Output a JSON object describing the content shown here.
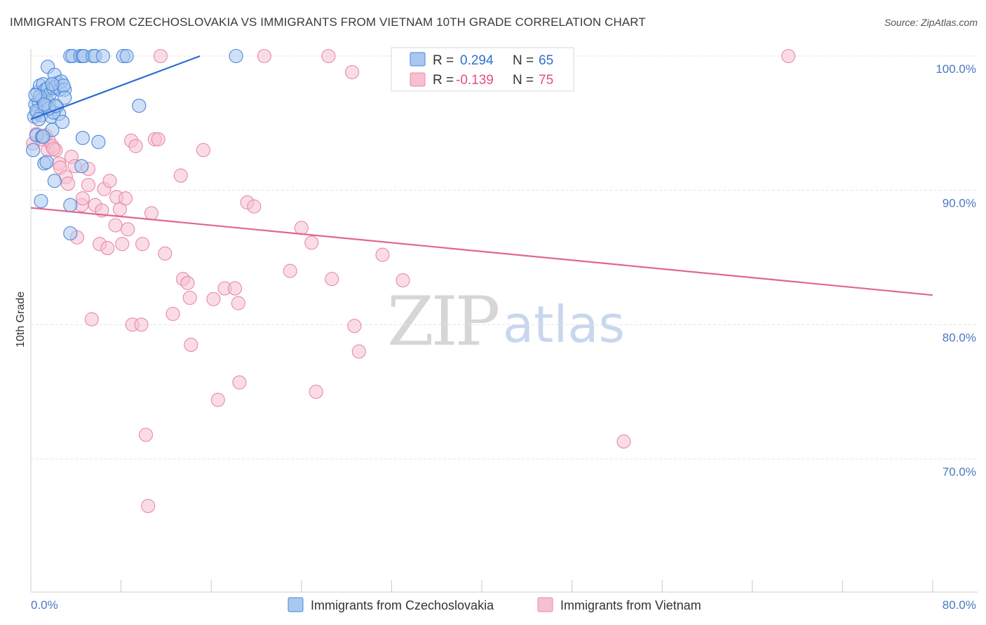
{
  "header": {
    "title": "IMMIGRANTS FROM CZECHOSLOVAKIA VS IMMIGRANTS FROM VIETNAM 10TH GRADE CORRELATION CHART",
    "source": "Source: ZipAtlas.com"
  },
  "watermark": {
    "zip": "ZIP",
    "atlas": "atlas"
  },
  "legend": {
    "series1": {
      "r_label": "R =",
      "r_value": "0.294",
      "n_label": "N =",
      "n_value": "65"
    },
    "series2": {
      "r_label": "R =",
      "r_value": "-0.139",
      "n_label": "N =",
      "n_value": "75"
    }
  },
  "colors": {
    "blue_fill": "#a9c8f0",
    "blue_stroke": "#4a86d8",
    "blue_line": "#2a6bd0",
    "pink_fill": "#f6bfd2",
    "pink_stroke": "#e889ab",
    "pink_line": "#e06692",
    "grid": "#e3e3e3",
    "tick_label": "#4a78c2"
  },
  "chart_data": {
    "type": "scatter",
    "title": "IMMIGRANTS FROM CZECHOSLOVAKIA VS IMMIGRANTS FROM VIETNAM 10TH GRADE CORRELATION CHART",
    "xlabel": "",
    "ylabel": "10th Grade",
    "xlim": [
      0,
      80
    ],
    "ylim": [
      60,
      101.5
    ],
    "x_tick_labels": [
      "0.0%",
      "80.0%"
    ],
    "y_ticks": [
      70,
      80,
      90,
      100
    ],
    "y_tick_labels": [
      "70.0%",
      "80.0%",
      "90.0%",
      "100.0%"
    ],
    "legend_position": "top-center",
    "series": [
      {
        "name": "Immigrants from Czechoslovakia",
        "color": "blue",
        "trend": {
          "x": [
            0,
            15
          ],
          "y": [
            95.3,
            100.0
          ]
        },
        "points": [
          [
            0.2,
            93.0
          ],
          [
            0.3,
            95.5
          ],
          [
            0.4,
            96.4
          ],
          [
            0.5,
            94.1
          ],
          [
            0.6,
            97.3
          ],
          [
            0.6,
            95.8
          ],
          [
            0.7,
            96.6
          ],
          [
            0.8,
            97.8
          ],
          [
            0.9,
            95.6
          ],
          [
            1.0,
            96.8
          ],
          [
            1.0,
            94.0
          ],
          [
            1.1,
            97.9
          ],
          [
            1.2,
            96.2
          ],
          [
            1.3,
            97.5
          ],
          [
            1.4,
            96.7
          ],
          [
            1.5,
            97.6
          ],
          [
            1.5,
            99.2
          ],
          [
            1.6,
            96.5
          ],
          [
            1.7,
            97.2
          ],
          [
            1.8,
            95.5
          ],
          [
            1.9,
            94.5
          ],
          [
            2.0,
            97.6
          ],
          [
            2.1,
            98.6
          ],
          [
            2.2,
            97.7
          ],
          [
            2.3,
            96.2
          ],
          [
            2.4,
            98.0
          ],
          [
            2.5,
            95.7
          ],
          [
            2.6,
            97.5
          ],
          [
            2.7,
            98.1
          ],
          [
            2.8,
            95.1
          ],
          [
            3.0,
            97.5
          ],
          [
            0.9,
            89.2
          ],
          [
            1.2,
            92.0
          ],
          [
            1.4,
            92.1
          ],
          [
            2.1,
            90.7
          ],
          [
            3.5,
            88.9
          ],
          [
            3.5,
            86.8
          ],
          [
            3.5,
            100.0
          ],
          [
            3.7,
            100.0
          ],
          [
            4.4,
            100.0
          ],
          [
            4.6,
            100.0
          ],
          [
            4.7,
            100.0
          ],
          [
            5.5,
            100.0
          ],
          [
            5.7,
            100.0
          ],
          [
            6.4,
            100.0
          ],
          [
            8.2,
            100.0
          ],
          [
            8.5,
            100.0
          ],
          [
            18.2,
            100.0
          ],
          [
            4.6,
            93.9
          ],
          [
            4.5,
            91.8
          ],
          [
            6.0,
            93.6
          ],
          [
            9.6,
            96.3
          ],
          [
            1.1,
            94.0
          ],
          [
            0.8,
            97.0
          ],
          [
            1.3,
            96.3
          ],
          [
            0.5,
            95.9
          ],
          [
            2.0,
            95.8
          ],
          [
            1.6,
            96.1
          ],
          [
            2.9,
            97.8
          ],
          [
            3.0,
            96.9
          ],
          [
            0.4,
            97.1
          ],
          [
            1.9,
            97.9
          ],
          [
            1.2,
            96.4
          ],
          [
            2.2,
            96.3
          ],
          [
            0.7,
            95.3
          ]
        ]
      },
      {
        "name": "Immigrants from Vietnam",
        "color": "pink",
        "trend": {
          "x": [
            0,
            80
          ],
          "y": [
            88.7,
            82.2
          ]
        },
        "points": [
          [
            0.2,
            93.5
          ],
          [
            0.5,
            94.2
          ],
          [
            1.0,
            93.8
          ],
          [
            1.3,
            94.1
          ],
          [
            1.5,
            93.0
          ],
          [
            1.6,
            93.7
          ],
          [
            1.9,
            93.3
          ],
          [
            2.2,
            93.0
          ],
          [
            2.5,
            92.0
          ],
          [
            2.6,
            91.7
          ],
          [
            3.1,
            91.0
          ],
          [
            3.3,
            90.5
          ],
          [
            3.6,
            92.5
          ],
          [
            3.9,
            91.8
          ],
          [
            4.1,
            86.5
          ],
          [
            4.5,
            88.9
          ],
          [
            4.6,
            89.4
          ],
          [
            5.1,
            91.6
          ],
          [
            5.1,
            90.4
          ],
          [
            5.4,
            80.4
          ],
          [
            5.7,
            88.9
          ],
          [
            6.1,
            86.0
          ],
          [
            6.3,
            88.5
          ],
          [
            6.5,
            90.1
          ],
          [
            6.8,
            85.7
          ],
          [
            7.0,
            90.7
          ],
          [
            7.5,
            87.4
          ],
          [
            7.6,
            89.5
          ],
          [
            7.9,
            88.6
          ],
          [
            8.1,
            86.0
          ],
          [
            8.4,
            89.4
          ],
          [
            8.6,
            87.1
          ],
          [
            8.9,
            93.7
          ],
          [
            9.0,
            80.0
          ],
          [
            9.3,
            93.3
          ],
          [
            9.8,
            80.0
          ],
          [
            9.9,
            86.0
          ],
          [
            10.2,
            71.8
          ],
          [
            10.4,
            66.5
          ],
          [
            10.7,
            88.3
          ],
          [
            11.0,
            93.8
          ],
          [
            11.3,
            93.8
          ],
          [
            11.5,
            100.0
          ],
          [
            11.9,
            85.3
          ],
          [
            12.6,
            80.8
          ],
          [
            13.3,
            91.1
          ],
          [
            13.5,
            83.4
          ],
          [
            13.9,
            83.1
          ],
          [
            14.1,
            82.0
          ],
          [
            14.2,
            78.5
          ],
          [
            15.3,
            93.0
          ],
          [
            16.2,
            81.9
          ],
          [
            16.6,
            74.4
          ],
          [
            17.2,
            82.7
          ],
          [
            18.1,
            82.7
          ],
          [
            18.5,
            75.7
          ],
          [
            18.4,
            81.6
          ],
          [
            19.2,
            89.1
          ],
          [
            19.8,
            88.8
          ],
          [
            20.7,
            100.0
          ],
          [
            23.0,
            84.0
          ],
          [
            24.0,
            87.2
          ],
          [
            24.9,
            86.1
          ],
          [
            25.3,
            75.0
          ],
          [
            26.4,
            100.0
          ],
          [
            26.7,
            83.4
          ],
          [
            28.5,
            98.8
          ],
          [
            28.7,
            79.9
          ],
          [
            29.1,
            78.0
          ],
          [
            31.2,
            85.2
          ],
          [
            33.0,
            83.3
          ],
          [
            43.5,
            100.0
          ],
          [
            52.6,
            71.3
          ],
          [
            67.2,
            100.0
          ],
          [
            2.0,
            93.1
          ]
        ]
      }
    ]
  },
  "bottom_legend": {
    "item1": "Immigrants from Czechoslovakia",
    "item2": "Immigrants from Vietnam"
  }
}
